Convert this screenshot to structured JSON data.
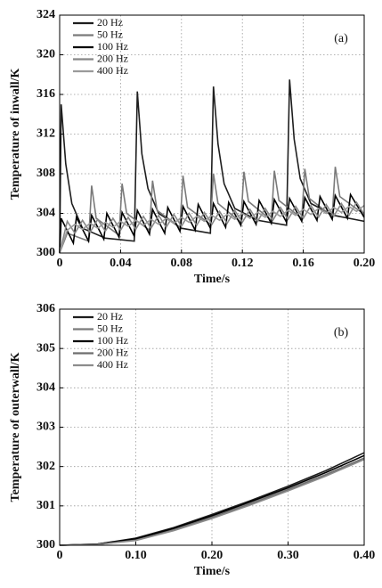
{
  "chart_data": [
    {
      "type": "line",
      "annotation": "(a)",
      "x_label": "Time/s",
      "y_label": "Temperature of inwall/K",
      "xlim": [
        0,
        0.2
      ],
      "xticks": [
        0,
        0.04,
        0.08,
        0.12,
        0.16,
        {
          "value": 0.2,
          "label": "0.20"
        }
      ],
      "ylim": [
        300,
        324
      ],
      "yticks": [
        300,
        304,
        308,
        312,
        316,
        320,
        324
      ],
      "grid": true,
      "legend": "upper-left",
      "series": [
        {
          "name": "20 Hz",
          "color": "#1e1e1e",
          "x": [
            0,
            0.001,
            0.004,
            0.008,
            0.015,
            0.03,
            0.049,
            0.051,
            0.054,
            0.058,
            0.065,
            0.08,
            0.099,
            0.101,
            0.104,
            0.108,
            0.115,
            0.13,
            0.149,
            0.151,
            0.154,
            0.158,
            0.165,
            0.18,
            0.2
          ],
          "values": [
            300,
            315,
            309,
            305,
            302.5,
            301.5,
            301.2,
            316.3,
            310,
            306.5,
            304,
            302.5,
            302,
            316.8,
            311,
            307,
            304.5,
            303.3,
            302.8,
            317.5,
            311.5,
            307.5,
            305,
            303.8,
            303.2
          ]
        },
        {
          "name": "50 Hz",
          "color": "#7a7a7a",
          "x": [
            0,
            0.005,
            0.019,
            0.021,
            0.024,
            0.039,
            0.041,
            0.044,
            0.059,
            0.061,
            0.064,
            0.079,
            0.081,
            0.084,
            0.099,
            0.101,
            0.104,
            0.119,
            0.121,
            0.124,
            0.139,
            0.141,
            0.144,
            0.159,
            0.161,
            0.164,
            0.179,
            0.181,
            0.184,
            0.2
          ],
          "values": [
            300,
            302,
            301.2,
            306.8,
            303.5,
            301.8,
            307,
            304,
            302.3,
            307.3,
            304.3,
            302.6,
            307.8,
            304.6,
            302.9,
            308,
            305,
            303.1,
            308.2,
            305.2,
            303.3,
            308.3,
            305.3,
            303.5,
            308.5,
            305.5,
            303.7,
            308.7,
            305.7,
            303.9
          ]
        },
        {
          "name": "100 Hz",
          "color": "#000000",
          "x": [
            0,
            0.001,
            0.009,
            0.011,
            0.019,
            0.021,
            0.029,
            0.031,
            0.039,
            0.041,
            0.049,
            0.051,
            0.059,
            0.061,
            0.069,
            0.071,
            0.079,
            0.081,
            0.089,
            0.091,
            0.099,
            0.101,
            0.109,
            0.111,
            0.119,
            0.121,
            0.129,
            0.131,
            0.139,
            0.141,
            0.149,
            0.151,
            0.159,
            0.161,
            0.169,
            0.171,
            0.179,
            0.181,
            0.189,
            0.191,
            0.2
          ],
          "values": [
            300,
            303.5,
            301,
            303.6,
            301.2,
            303.8,
            301.4,
            304,
            301.6,
            304.1,
            301.7,
            304.3,
            301.9,
            304.4,
            302,
            304.6,
            302.2,
            304.7,
            302.3,
            304.9,
            302.5,
            305,
            302.6,
            305.1,
            302.8,
            305.2,
            302.9,
            305.3,
            303,
            305.4,
            303.1,
            305.5,
            303.2,
            305.6,
            303.3,
            305.7,
            303.4,
            305.8,
            303.5,
            305.9,
            303.6
          ]
        },
        {
          "name": "200 Hz",
          "color": "#888888",
          "x": [
            0,
            0.005,
            0.01,
            0.015,
            0.02,
            0.025,
            0.03,
            0.035,
            0.04,
            0.045,
            0.05,
            0.055,
            0.06,
            0.065,
            0.07,
            0.075,
            0.08,
            0.085,
            0.09,
            0.095,
            0.1,
            0.105,
            0.11,
            0.115,
            0.12,
            0.125,
            0.13,
            0.135,
            0.14,
            0.145,
            0.15,
            0.155,
            0.16,
            0.165,
            0.17,
            0.175,
            0.18,
            0.185,
            0.19,
            0.195,
            0.2
          ],
          "values": [
            300,
            303.2,
            302,
            303.3,
            302.1,
            303.4,
            302.2,
            303.5,
            302.3,
            303.6,
            302.4,
            303.7,
            302.5,
            303.8,
            302.6,
            303.9,
            302.7,
            304,
            302.8,
            304.1,
            302.9,
            304.2,
            303,
            304.3,
            303.1,
            304.4,
            303.2,
            304.5,
            303.3,
            304.6,
            303.4,
            304.7,
            303.5,
            304.8,
            303.6,
            304.9,
            303.7,
            305,
            303.8,
            305.1,
            303.9
          ]
        },
        {
          "name": "400 Hz",
          "color": "#9a9a9a",
          "x": [
            0,
            0.005,
            0.01,
            0.015,
            0.02,
            0.025,
            0.03,
            0.035,
            0.04,
            0.045,
            0.05,
            0.055,
            0.06,
            0.065,
            0.07,
            0.075,
            0.08,
            0.085,
            0.09,
            0.095,
            0.1,
            0.105,
            0.11,
            0.115,
            0.12,
            0.125,
            0.13,
            0.135,
            0.14,
            0.145,
            0.15,
            0.155,
            0.16,
            0.165,
            0.17,
            0.175,
            0.18,
            0.185,
            0.19,
            0.195,
            0.2
          ],
          "values": [
            300,
            302.3,
            302.9,
            302.4,
            303,
            302.5,
            303.1,
            302.6,
            303.2,
            302.7,
            303.3,
            302.8,
            303.4,
            302.9,
            303.5,
            303,
            303.6,
            303.1,
            303.7,
            303.2,
            303.8,
            303.3,
            303.9,
            303.4,
            304,
            303.5,
            304.1,
            303.6,
            304.2,
            303.7,
            304.3,
            303.8,
            304.4,
            303.9,
            304.5,
            304,
            304.6,
            304.1,
            304.7,
            304.2,
            304.8
          ]
        }
      ]
    },
    {
      "type": "line",
      "annotation": "(b)",
      "x_label": "Time/s",
      "y_label": "Temperature of outerwall/K",
      "xlim": [
        0,
        0.4
      ],
      "xticks": [
        0,
        {
          "value": 0.1,
          "label": "0.10"
        },
        {
          "value": 0.2,
          "label": "0.20"
        },
        {
          "value": 0.3,
          "label": "0.30"
        },
        {
          "value": 0.4,
          "label": "0.40"
        }
      ],
      "ylim": [
        300,
        306
      ],
      "yticks": [
        300,
        301,
        302,
        303,
        304,
        305,
        306
      ],
      "grid": true,
      "legend": "upper-left",
      "series": [
        {
          "name": "20 Hz",
          "color": "#1e1e1e",
          "x": [
            0,
            0.05,
            0.1,
            0.15,
            0.2,
            0.25,
            0.3,
            0.35,
            0.4
          ],
          "values": [
            300,
            300.03,
            300.18,
            300.45,
            300.78,
            301.13,
            301.5,
            301.9,
            302.35
          ]
        },
        {
          "name": "50 Hz",
          "color": "#7a7a7a",
          "x": [
            0,
            0.05,
            0.1,
            0.15,
            0.2,
            0.25,
            0.3,
            0.35,
            0.4
          ],
          "values": [
            300,
            300.02,
            300.14,
            300.4,
            300.72,
            301.06,
            301.42,
            301.8,
            302.22
          ]
        },
        {
          "name": "100 Hz",
          "color": "#000000",
          "x": [
            0,
            0.05,
            0.1,
            0.15,
            0.2,
            0.25,
            0.3,
            0.35,
            0.4
          ],
          "values": [
            300,
            300.03,
            300.16,
            300.43,
            300.75,
            301.1,
            301.46,
            301.85,
            302.28
          ]
        },
        {
          "name": "200 Hz",
          "color": "#6e6e6e",
          "x": [
            0,
            0.05,
            0.1,
            0.15,
            0.2,
            0.25,
            0.3,
            0.35,
            0.4
          ],
          "values": [
            300,
            300.02,
            300.13,
            300.38,
            300.7,
            301.04,
            301.4,
            301.78,
            302.2
          ]
        },
        {
          "name": "400 Hz",
          "color": "#8c8c8c",
          "x": [
            0,
            0.05,
            0.1,
            0.15,
            0.2,
            0.25,
            0.3,
            0.35,
            0.4
          ],
          "values": [
            300,
            300.02,
            300.12,
            300.37,
            300.68,
            301.02,
            301.38,
            301.76,
            302.18
          ]
        }
      ]
    }
  ]
}
